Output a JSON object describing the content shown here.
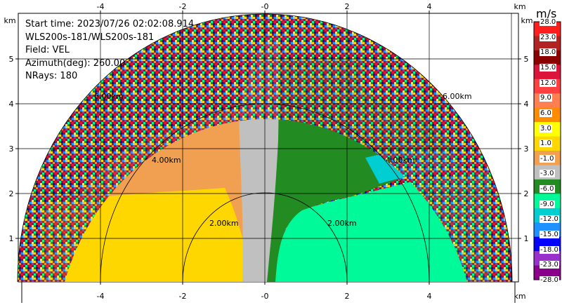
{
  "info": {
    "start_time": "Start time: 2023/07/26 02:02:08.914",
    "station": "WLS200s-181/WLS200s-181",
    "field": "Field: VEL",
    "azimuth": "Azimuth(deg): 260.00",
    "nrays": "NRays: 180"
  },
  "axes": {
    "unit": "km",
    "x_ticks": [
      "-4",
      "-2",
      "-0",
      "2",
      "4"
    ],
    "y_ticks": [
      "1",
      "2",
      "3",
      "4",
      "5"
    ]
  },
  "range_rings": [
    "2.00km",
    "2.00km",
    "4.00km",
    "4.00km",
    "6.00km",
    "6.00km"
  ],
  "colorbar": {
    "title": "m/s",
    "labels": [
      "28.0",
      "23.0",
      "18.0",
      "15.0",
      "12.0",
      "9.0",
      "6.0",
      "3.0",
      "1.0",
      "-1.0",
      "-3.0",
      "-6.0",
      "-9.0",
      "-12.0",
      "-15.0",
      "-18.0",
      "-23.0",
      "-28.0"
    ],
    "colors": [
      "#ff1e1e",
      "#b22222",
      "#8b0000",
      "#dc143c",
      "#ff4040",
      "#ff7f50",
      "#ff8c00",
      "#ffff00",
      "#ffd700",
      "#f0a050",
      "#c0c0c0",
      "#228b22",
      "#00fa9a",
      "#00ced1",
      "#1e90ff",
      "#0000ff",
      "#9932cc",
      "#8b008b"
    ]
  }
}
